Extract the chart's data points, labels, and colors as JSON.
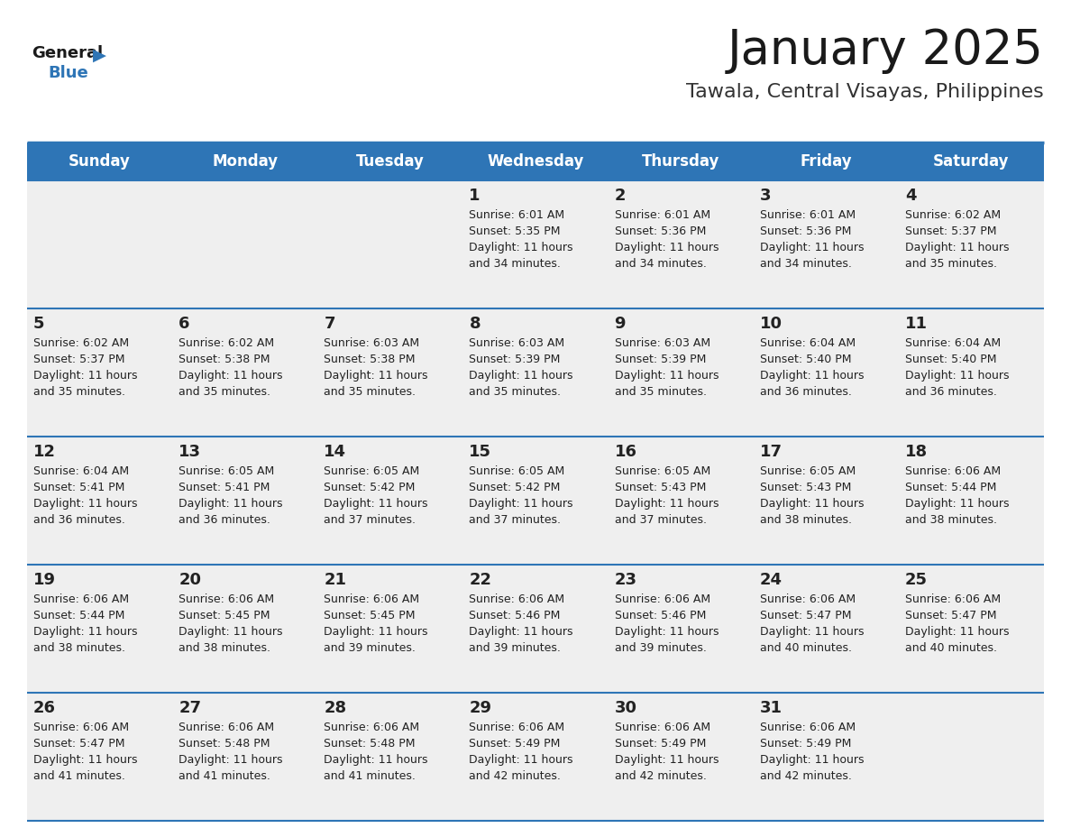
{
  "title": "January 2025",
  "subtitle": "Tawala, Central Visayas, Philippines",
  "days_of_week": [
    "Sunday",
    "Monday",
    "Tuesday",
    "Wednesday",
    "Thursday",
    "Friday",
    "Saturday"
  ],
  "header_bg": "#2E75B6",
  "header_text": "#FFFFFF",
  "row_bg": "#EFEFEF",
  "cell_text": "#222222",
  "day_num_color": "#222222",
  "separator_color": "#2E75B6",
  "title_color": "#1a1a1a",
  "subtitle_color": "#333333",
  "logo_general_color": "#1a1a1a",
  "logo_blue_color": "#2E75B6",
  "calendar_data": [
    [
      null,
      null,
      null,
      {
        "day": 1,
        "sunrise": "6:01 AM",
        "sunset": "5:35 PM",
        "daylight": "11 hours\nand 34 minutes."
      },
      {
        "day": 2,
        "sunrise": "6:01 AM",
        "sunset": "5:36 PM",
        "daylight": "11 hours\nand 34 minutes."
      },
      {
        "day": 3,
        "sunrise": "6:01 AM",
        "sunset": "5:36 PM",
        "daylight": "11 hours\nand 34 minutes."
      },
      {
        "day": 4,
        "sunrise": "6:02 AM",
        "sunset": "5:37 PM",
        "daylight": "11 hours\nand 35 minutes."
      }
    ],
    [
      {
        "day": 5,
        "sunrise": "6:02 AM",
        "sunset": "5:37 PM",
        "daylight": "11 hours\nand 35 minutes."
      },
      {
        "day": 6,
        "sunrise": "6:02 AM",
        "sunset": "5:38 PM",
        "daylight": "11 hours\nand 35 minutes."
      },
      {
        "day": 7,
        "sunrise": "6:03 AM",
        "sunset": "5:38 PM",
        "daylight": "11 hours\nand 35 minutes."
      },
      {
        "day": 8,
        "sunrise": "6:03 AM",
        "sunset": "5:39 PM",
        "daylight": "11 hours\nand 35 minutes."
      },
      {
        "day": 9,
        "sunrise": "6:03 AM",
        "sunset": "5:39 PM",
        "daylight": "11 hours\nand 35 minutes."
      },
      {
        "day": 10,
        "sunrise": "6:04 AM",
        "sunset": "5:40 PM",
        "daylight": "11 hours\nand 36 minutes."
      },
      {
        "day": 11,
        "sunrise": "6:04 AM",
        "sunset": "5:40 PM",
        "daylight": "11 hours\nand 36 minutes."
      }
    ],
    [
      {
        "day": 12,
        "sunrise": "6:04 AM",
        "sunset": "5:41 PM",
        "daylight": "11 hours\nand 36 minutes."
      },
      {
        "day": 13,
        "sunrise": "6:05 AM",
        "sunset": "5:41 PM",
        "daylight": "11 hours\nand 36 minutes."
      },
      {
        "day": 14,
        "sunrise": "6:05 AM",
        "sunset": "5:42 PM",
        "daylight": "11 hours\nand 37 minutes."
      },
      {
        "day": 15,
        "sunrise": "6:05 AM",
        "sunset": "5:42 PM",
        "daylight": "11 hours\nand 37 minutes."
      },
      {
        "day": 16,
        "sunrise": "6:05 AM",
        "sunset": "5:43 PM",
        "daylight": "11 hours\nand 37 minutes."
      },
      {
        "day": 17,
        "sunrise": "6:05 AM",
        "sunset": "5:43 PM",
        "daylight": "11 hours\nand 38 minutes."
      },
      {
        "day": 18,
        "sunrise": "6:06 AM",
        "sunset": "5:44 PM",
        "daylight": "11 hours\nand 38 minutes."
      }
    ],
    [
      {
        "day": 19,
        "sunrise": "6:06 AM",
        "sunset": "5:44 PM",
        "daylight": "11 hours\nand 38 minutes."
      },
      {
        "day": 20,
        "sunrise": "6:06 AM",
        "sunset": "5:45 PM",
        "daylight": "11 hours\nand 38 minutes."
      },
      {
        "day": 21,
        "sunrise": "6:06 AM",
        "sunset": "5:45 PM",
        "daylight": "11 hours\nand 39 minutes."
      },
      {
        "day": 22,
        "sunrise": "6:06 AM",
        "sunset": "5:46 PM",
        "daylight": "11 hours\nand 39 minutes."
      },
      {
        "day": 23,
        "sunrise": "6:06 AM",
        "sunset": "5:46 PM",
        "daylight": "11 hours\nand 39 minutes."
      },
      {
        "day": 24,
        "sunrise": "6:06 AM",
        "sunset": "5:47 PM",
        "daylight": "11 hours\nand 40 minutes."
      },
      {
        "day": 25,
        "sunrise": "6:06 AM",
        "sunset": "5:47 PM",
        "daylight": "11 hours\nand 40 minutes."
      }
    ],
    [
      {
        "day": 26,
        "sunrise": "6:06 AM",
        "sunset": "5:47 PM",
        "daylight": "11 hours\nand 41 minutes."
      },
      {
        "day": 27,
        "sunrise": "6:06 AM",
        "sunset": "5:48 PM",
        "daylight": "11 hours\nand 41 minutes."
      },
      {
        "day": 28,
        "sunrise": "6:06 AM",
        "sunset": "5:48 PM",
        "daylight": "11 hours\nand 41 minutes."
      },
      {
        "day": 29,
        "sunrise": "6:06 AM",
        "sunset": "5:49 PM",
        "daylight": "11 hours\nand 42 minutes."
      },
      {
        "day": 30,
        "sunrise": "6:06 AM",
        "sunset": "5:49 PM",
        "daylight": "11 hours\nand 42 minutes."
      },
      {
        "day": 31,
        "sunrise": "6:06 AM",
        "sunset": "5:49 PM",
        "daylight": "11 hours\nand 42 minutes."
      },
      null
    ]
  ]
}
